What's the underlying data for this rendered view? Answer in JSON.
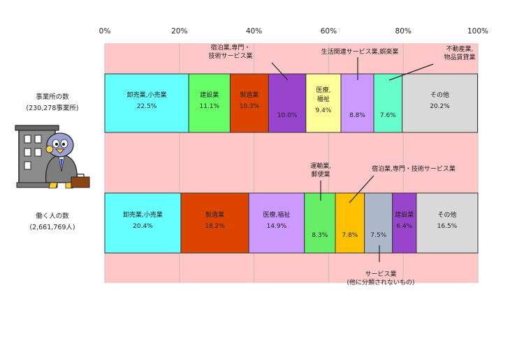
{
  "chart_data": {
    "type": "bar",
    "orientation": "horizontal-stacked-100",
    "x_ticks": [
      "0%",
      "20%",
      "40%",
      "60%",
      "80%",
      "100%"
    ],
    "xlim": [
      0,
      100
    ],
    "background": "#ffc7c7",
    "rows": [
      {
        "label_line1": "事業所の数",
        "label_line2": "(230,278事業所)",
        "segments": [
          {
            "name": "卸売業,小売業",
            "value": 22.5,
            "value_label": "22.5%",
            "color": "#66ffff",
            "label_inside": true
          },
          {
            "name": "建設業",
            "value": 11.1,
            "value_label": "11.1%",
            "color": "#66ff66",
            "label_inside": true
          },
          {
            "name": "製造業",
            "value": 10.3,
            "value_label": "10.3%",
            "color": "#dd4400",
            "label_inside": true
          },
          {
            "name": "宿泊業,専門・技術サービス業",
            "value": 10.0,
            "value_label": "10.0%",
            "color": "#9944cc",
            "label_inside": false
          },
          {
            "name": "医療,福祉",
            "value": 9.4,
            "value_label": "9.4%",
            "color": "#ffff99",
            "label_inside": true
          },
          {
            "name": "生活関連サービス業,娯楽業",
            "value": 8.8,
            "value_label": "8.8%",
            "color": "#cc99ff",
            "label_inside": false
          },
          {
            "name": "不動産業,物品賃貸業",
            "value": 7.6,
            "value_label": "7.6%",
            "color": "#66ffcc",
            "label_inside": false
          },
          {
            "name": "その他",
            "value": 20.2,
            "value_label": "20.2%",
            "color": "#d9d9d9",
            "label_inside": true
          }
        ]
      },
      {
        "label_line1": "働く人の数",
        "label_line2": "(2,661,769人)",
        "segments": [
          {
            "name": "卸売業,小売業",
            "value": 20.4,
            "value_label": "20.4%",
            "color": "#66ffff",
            "label_inside": true
          },
          {
            "name": "製造業",
            "value": 18.2,
            "value_label": "18.2%",
            "color": "#dd4400",
            "label_inside": true
          },
          {
            "name": "医療,福祉",
            "value": 14.9,
            "value_label": "14.9%",
            "color": "#cc99ff",
            "label_inside": true
          },
          {
            "name": "運輸業,郵便業",
            "value": 8.3,
            "value_label": "8.3%",
            "color": "#66ee66",
            "label_inside": false
          },
          {
            "name": "宿泊業,専門・技術サービス業",
            "value": 7.8,
            "value_label": "7.8%",
            "color": "#ffc000",
            "label_inside": false
          },
          {
            "name": "サービス業(他に分類されないもの)",
            "value": 7.5,
            "value_label": "7.5%",
            "color": "#adb9ca",
            "label_inside": false
          },
          {
            "name": "建設業",
            "value": 6.4,
            "value_label": "6.4%",
            "color": "#9944cc",
            "label_inside": true
          },
          {
            "name": "その他",
            "value": 16.5,
            "value_label": "16.5%",
            "color": "#d9d9d9",
            "label_inside": true
          }
        ]
      }
    ],
    "callouts": {
      "row1_shukuhaku_line1": "宿泊業,専門・",
      "row1_shukuhaku_line2": "技術サービス業",
      "row1_seikatsu": "生活関連サービス業,娯楽業",
      "row1_fudosan_line1": "不動産業,",
      "row1_fudosan_line2": "物品賃貸業",
      "row2_unyu_line1": "運輸業,",
      "row2_unyu_line2": "郵便業",
      "row2_shukuhaku": "宿泊業,専門・技術サービス業",
      "row2_service_line1": "サービス業",
      "row2_service_line2": "(他に分類されないもの)"
    }
  }
}
